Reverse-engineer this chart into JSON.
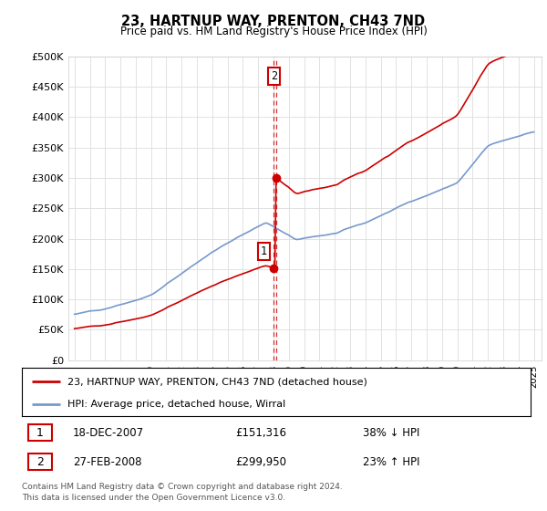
{
  "title": "23, HARTNUP WAY, PRENTON, CH43 7ND",
  "subtitle": "Price paid vs. HM Land Registry's House Price Index (HPI)",
  "hpi_label": "HPI: Average price, detached house, Wirral",
  "property_label": "23, HARTNUP WAY, PRENTON, CH43 7ND (detached house)",
  "hpi_color": "#7799cc",
  "property_color": "#cc0000",
  "annotation_color": "#cc0000",
  "sale1_date": "18-DEC-2007",
  "sale1_price": 151316,
  "sale1_hpi_text": "38% ↓ HPI",
  "sale2_date": "27-FEB-2008",
  "sale2_price": 299950,
  "sale2_hpi_text": "23% ↑ HPI",
  "footer": "Contains HM Land Registry data © Crown copyright and database right 2024.\nThis data is licensed under the Open Government Licence v3.0.",
  "ylim": [
    0,
    500000
  ],
  "yticks": [
    0,
    50000,
    100000,
    150000,
    200000,
    250000,
    300000,
    350000,
    400000,
    450000,
    500000
  ],
  "ytick_labels": [
    "£0",
    "£50K",
    "£100K",
    "£150K",
    "£200K",
    "£250K",
    "£300K",
    "£350K",
    "£400K",
    "£450K",
    "£500K"
  ],
  "sale1_x": 2007.97,
  "sale2_x": 2008.16,
  "xmin": 1995,
  "xmax": 2025
}
